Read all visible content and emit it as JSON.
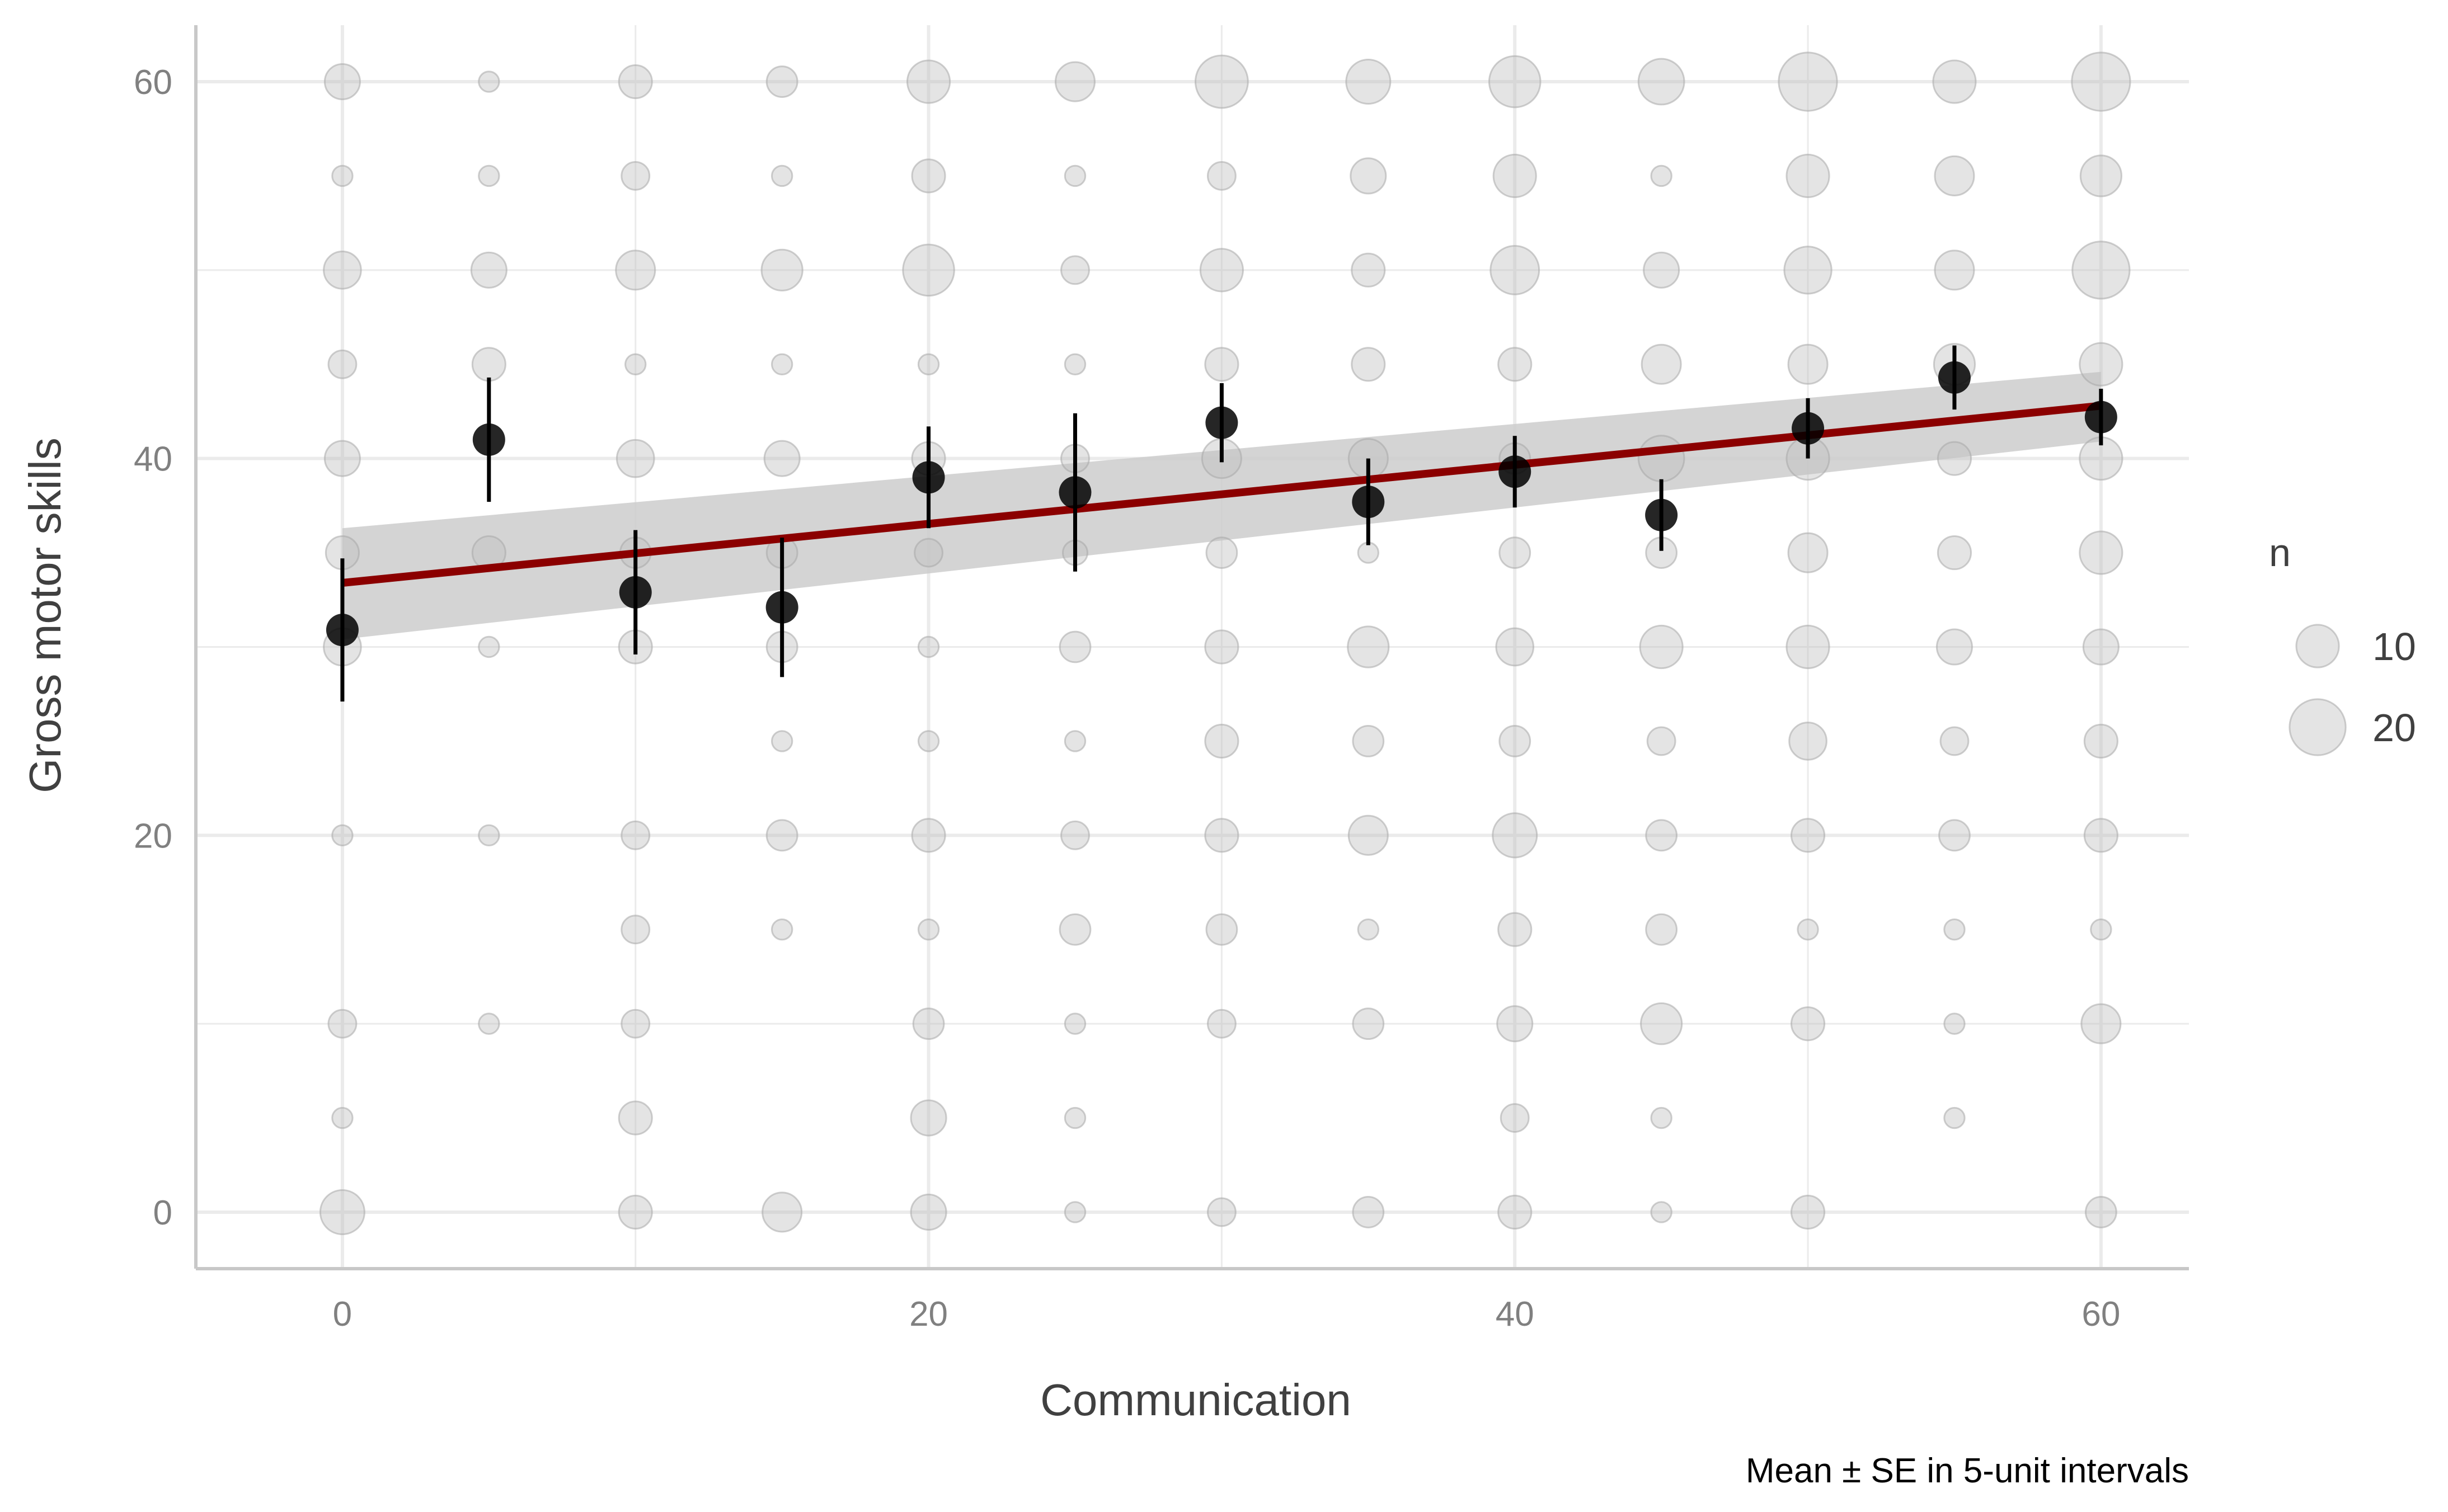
{
  "chart_data": {
    "type": "scatter",
    "xlabel": "Communication",
    "ylabel": "Gross motor skills",
    "caption": "Mean ± SE in 5-unit intervals",
    "xlim": [
      -5,
      63
    ],
    "ylim": [
      -3,
      63
    ],
    "xticks": [
      0,
      20,
      40,
      60
    ],
    "yticks": [
      0,
      20,
      40,
      60
    ],
    "grid": true,
    "colors": {
      "count_points": "#bfbfbf",
      "mean_points": "#000000",
      "fit_line": "#8b0000",
      "ribbon": "#cccccc",
      "grid": "#ebebeb",
      "axis": "#c8c8c8"
    },
    "legend": {
      "title": "n",
      "position": "right",
      "entries": [
        {
          "label": "10",
          "value": 10
        },
        {
          "label": "20",
          "value": 20
        }
      ]
    },
    "count_points": [
      {
        "x": 0,
        "y": 60,
        "n": 6
      },
      {
        "x": 0,
        "y": 55,
        "n": 1
      },
      {
        "x": 0,
        "y": 50,
        "n": 7
      },
      {
        "x": 0,
        "y": 45,
        "n": 3
      },
      {
        "x": 0,
        "y": 40,
        "n": 6
      },
      {
        "x": 0,
        "y": 35,
        "n": 5
      },
      {
        "x": 0,
        "y": 30,
        "n": 7
      },
      {
        "x": 0,
        "y": 20,
        "n": 1
      },
      {
        "x": 0,
        "y": 10,
        "n": 3
      },
      {
        "x": 0,
        "y": 5,
        "n": 1
      },
      {
        "x": 0,
        "y": 0,
        "n": 11
      },
      {
        "x": 5,
        "y": 60,
        "n": 1
      },
      {
        "x": 5,
        "y": 55,
        "n": 1
      },
      {
        "x": 5,
        "y": 50,
        "n": 6
      },
      {
        "x": 5,
        "y": 45,
        "n": 5
      },
      {
        "x": 5,
        "y": 35,
        "n": 5
      },
      {
        "x": 5,
        "y": 30,
        "n": 1
      },
      {
        "x": 5,
        "y": 20,
        "n": 1
      },
      {
        "x": 5,
        "y": 10,
        "n": 1
      },
      {
        "x": 10,
        "y": 60,
        "n": 5
      },
      {
        "x": 10,
        "y": 55,
        "n": 3
      },
      {
        "x": 10,
        "y": 50,
        "n": 8
      },
      {
        "x": 10,
        "y": 45,
        "n": 1
      },
      {
        "x": 10,
        "y": 40,
        "n": 7
      },
      {
        "x": 10,
        "y": 35,
        "n": 4
      },
      {
        "x": 10,
        "y": 30,
        "n": 5
      },
      {
        "x": 10,
        "y": 20,
        "n": 3
      },
      {
        "x": 10,
        "y": 15,
        "n": 3
      },
      {
        "x": 10,
        "y": 10,
        "n": 3
      },
      {
        "x": 10,
        "y": 5,
        "n": 5
      },
      {
        "x": 10,
        "y": 0,
        "n": 5
      },
      {
        "x": 15,
        "y": 60,
        "n": 4
      },
      {
        "x": 15,
        "y": 55,
        "n": 1
      },
      {
        "x": 15,
        "y": 50,
        "n": 9
      },
      {
        "x": 15,
        "y": 45,
        "n": 1
      },
      {
        "x": 15,
        "y": 40,
        "n": 6
      },
      {
        "x": 15,
        "y": 35,
        "n": 4
      },
      {
        "x": 15,
        "y": 30,
        "n": 4
      },
      {
        "x": 15,
        "y": 25,
        "n": 1
      },
      {
        "x": 15,
        "y": 20,
        "n": 4
      },
      {
        "x": 15,
        "y": 15,
        "n": 1
      },
      {
        "x": 15,
        "y": 0,
        "n": 8
      },
      {
        "x": 20,
        "y": 60,
        "n": 10
      },
      {
        "x": 20,
        "y": 55,
        "n": 5
      },
      {
        "x": 20,
        "y": 50,
        "n": 16
      },
      {
        "x": 20,
        "y": 45,
        "n": 1
      },
      {
        "x": 20,
        "y": 40,
        "n": 5
      },
      {
        "x": 20,
        "y": 35,
        "n": 3
      },
      {
        "x": 20,
        "y": 30,
        "n": 1
      },
      {
        "x": 20,
        "y": 25,
        "n": 1
      },
      {
        "x": 20,
        "y": 20,
        "n": 5
      },
      {
        "x": 20,
        "y": 15,
        "n": 1
      },
      {
        "x": 20,
        "y": 10,
        "n": 4
      },
      {
        "x": 20,
        "y": 5,
        "n": 6
      },
      {
        "x": 20,
        "y": 0,
        "n": 6
      },
      {
        "x": 25,
        "y": 60,
        "n": 8
      },
      {
        "x": 25,
        "y": 55,
        "n": 1
      },
      {
        "x": 25,
        "y": 50,
        "n": 3
      },
      {
        "x": 25,
        "y": 45,
        "n": 1
      },
      {
        "x": 25,
        "y": 40,
        "n": 3
      },
      {
        "x": 25,
        "y": 35,
        "n": 2
      },
      {
        "x": 25,
        "y": 30,
        "n": 4
      },
      {
        "x": 25,
        "y": 25,
        "n": 1
      },
      {
        "x": 25,
        "y": 20,
        "n": 3
      },
      {
        "x": 25,
        "y": 15,
        "n": 4
      },
      {
        "x": 25,
        "y": 10,
        "n": 1
      },
      {
        "x": 25,
        "y": 5,
        "n": 1
      },
      {
        "x": 25,
        "y": 0,
        "n": 1
      },
      {
        "x": 30,
        "y": 60,
        "n": 17
      },
      {
        "x": 30,
        "y": 55,
        "n": 3
      },
      {
        "x": 30,
        "y": 50,
        "n": 10
      },
      {
        "x": 30,
        "y": 45,
        "n": 5
      },
      {
        "x": 30,
        "y": 40,
        "n": 8
      },
      {
        "x": 30,
        "y": 35,
        "n": 4
      },
      {
        "x": 30,
        "y": 30,
        "n": 5
      },
      {
        "x": 30,
        "y": 25,
        "n": 5
      },
      {
        "x": 30,
        "y": 20,
        "n": 5
      },
      {
        "x": 30,
        "y": 15,
        "n": 4
      },
      {
        "x": 30,
        "y": 10,
        "n": 3
      },
      {
        "x": 30,
        "y": 0,
        "n": 3
      },
      {
        "x": 35,
        "y": 60,
        "n": 11
      },
      {
        "x": 35,
        "y": 55,
        "n": 6
      },
      {
        "x": 35,
        "y": 50,
        "n": 5
      },
      {
        "x": 35,
        "y": 45,
        "n": 5
      },
      {
        "x": 35,
        "y": 40,
        "n": 8
      },
      {
        "x": 35,
        "y": 35,
        "n": 1
      },
      {
        "x": 35,
        "y": 30,
        "n": 9
      },
      {
        "x": 35,
        "y": 25,
        "n": 4
      },
      {
        "x": 35,
        "y": 20,
        "n": 8
      },
      {
        "x": 35,
        "y": 15,
        "n": 1
      },
      {
        "x": 35,
        "y": 10,
        "n": 4
      },
      {
        "x": 35,
        "y": 0,
        "n": 4
      },
      {
        "x": 40,
        "y": 60,
        "n": 16
      },
      {
        "x": 40,
        "y": 55,
        "n": 10
      },
      {
        "x": 40,
        "y": 50,
        "n": 14
      },
      {
        "x": 40,
        "y": 45,
        "n": 5
      },
      {
        "x": 40,
        "y": 40,
        "n": 4
      },
      {
        "x": 40,
        "y": 35,
        "n": 4
      },
      {
        "x": 40,
        "y": 30,
        "n": 7
      },
      {
        "x": 40,
        "y": 25,
        "n": 4
      },
      {
        "x": 40,
        "y": 20,
        "n": 11
      },
      {
        "x": 40,
        "y": 15,
        "n": 5
      },
      {
        "x": 40,
        "y": 10,
        "n": 6
      },
      {
        "x": 40,
        "y": 5,
        "n": 3
      },
      {
        "x": 40,
        "y": 0,
        "n": 5
      },
      {
        "x": 45,
        "y": 60,
        "n": 12
      },
      {
        "x": 45,
        "y": 55,
        "n": 1
      },
      {
        "x": 45,
        "y": 50,
        "n": 6
      },
      {
        "x": 45,
        "y": 45,
        "n": 8
      },
      {
        "x": 45,
        "y": 40,
        "n": 12
      },
      {
        "x": 45,
        "y": 35,
        "n": 4
      },
      {
        "x": 45,
        "y": 30,
        "n": 10
      },
      {
        "x": 45,
        "y": 25,
        "n": 3
      },
      {
        "x": 45,
        "y": 20,
        "n": 4
      },
      {
        "x": 45,
        "y": 15,
        "n": 4
      },
      {
        "x": 45,
        "y": 10,
        "n": 9
      },
      {
        "x": 45,
        "y": 5,
        "n": 1
      },
      {
        "x": 45,
        "y": 0,
        "n": 1
      },
      {
        "x": 50,
        "y": 60,
        "n": 22
      },
      {
        "x": 50,
        "y": 55,
        "n": 10
      },
      {
        "x": 50,
        "y": 50,
        "n": 13
      },
      {
        "x": 50,
        "y": 45,
        "n": 8
      },
      {
        "x": 50,
        "y": 40,
        "n": 10
      },
      {
        "x": 50,
        "y": 35,
        "n": 8
      },
      {
        "x": 50,
        "y": 30,
        "n": 10
      },
      {
        "x": 50,
        "y": 25,
        "n": 7
      },
      {
        "x": 50,
        "y": 20,
        "n": 5
      },
      {
        "x": 50,
        "y": 15,
        "n": 1
      },
      {
        "x": 50,
        "y": 10,
        "n": 5
      },
      {
        "x": 50,
        "y": 0,
        "n": 5
      },
      {
        "x": 55,
        "y": 60,
        "n": 10
      },
      {
        "x": 55,
        "y": 55,
        "n": 8
      },
      {
        "x": 55,
        "y": 50,
        "n": 8
      },
      {
        "x": 55,
        "y": 45,
        "n": 9
      },
      {
        "x": 55,
        "y": 40,
        "n": 5
      },
      {
        "x": 55,
        "y": 35,
        "n": 5
      },
      {
        "x": 55,
        "y": 30,
        "n": 6
      },
      {
        "x": 55,
        "y": 25,
        "n": 3
      },
      {
        "x": 55,
        "y": 20,
        "n": 4
      },
      {
        "x": 55,
        "y": 15,
        "n": 1
      },
      {
        "x": 55,
        "y": 10,
        "n": 1
      },
      {
        "x": 55,
        "y": 5,
        "n": 1
      },
      {
        "x": 60,
        "y": 60,
        "n": 22
      },
      {
        "x": 60,
        "y": 55,
        "n": 9
      },
      {
        "x": 60,
        "y": 50,
        "n": 21
      },
      {
        "x": 60,
        "y": 45,
        "n": 10
      },
      {
        "x": 60,
        "y": 40,
        "n": 10
      },
      {
        "x": 60,
        "y": 35,
        "n": 10
      },
      {
        "x": 60,
        "y": 30,
        "n": 6
      },
      {
        "x": 60,
        "y": 25,
        "n": 5
      },
      {
        "x": 60,
        "y": 20,
        "n": 5
      },
      {
        "x": 60,
        "y": 15,
        "n": 1
      },
      {
        "x": 60,
        "y": 10,
        "n": 8
      },
      {
        "x": 60,
        "y": 0,
        "n": 4
      }
    ],
    "means": [
      {
        "x": 0,
        "y": 30.9,
        "lo": 27.1,
        "hi": 34.7
      },
      {
        "x": 5,
        "y": 41.0,
        "lo": 37.7,
        "hi": 44.3
      },
      {
        "x": 10,
        "y": 32.9,
        "lo": 29.6,
        "hi": 36.2
      },
      {
        "x": 15,
        "y": 32.1,
        "lo": 28.4,
        "hi": 35.8
      },
      {
        "x": 20,
        "y": 39.0,
        "lo": 36.3,
        "hi": 41.7
      },
      {
        "x": 25,
        "y": 38.2,
        "lo": 34.0,
        "hi": 42.4
      },
      {
        "x": 30,
        "y": 41.9,
        "lo": 39.8,
        "hi": 44.0
      },
      {
        "x": 35,
        "y": 37.7,
        "lo": 35.4,
        "hi": 40.0
      },
      {
        "x": 40,
        "y": 39.3,
        "lo": 37.4,
        "hi": 41.2
      },
      {
        "x": 45,
        "y": 37.0,
        "lo": 35.1,
        "hi": 38.9
      },
      {
        "x": 50,
        "y": 41.6,
        "lo": 40.0,
        "hi": 43.2
      },
      {
        "x": 55,
        "y": 44.3,
        "lo": 42.6,
        "hi": 46.0
      },
      {
        "x": 60,
        "y": 42.2,
        "lo": 40.7,
        "hi": 43.7
      }
    ],
    "fit": {
      "x": [
        0,
        60
      ],
      "y": [
        33.4,
        42.8
      ],
      "ribbon_lo": [
        30.4,
        40.9
      ],
      "ribbon_hi": [
        36.3,
        44.6
      ]
    }
  }
}
